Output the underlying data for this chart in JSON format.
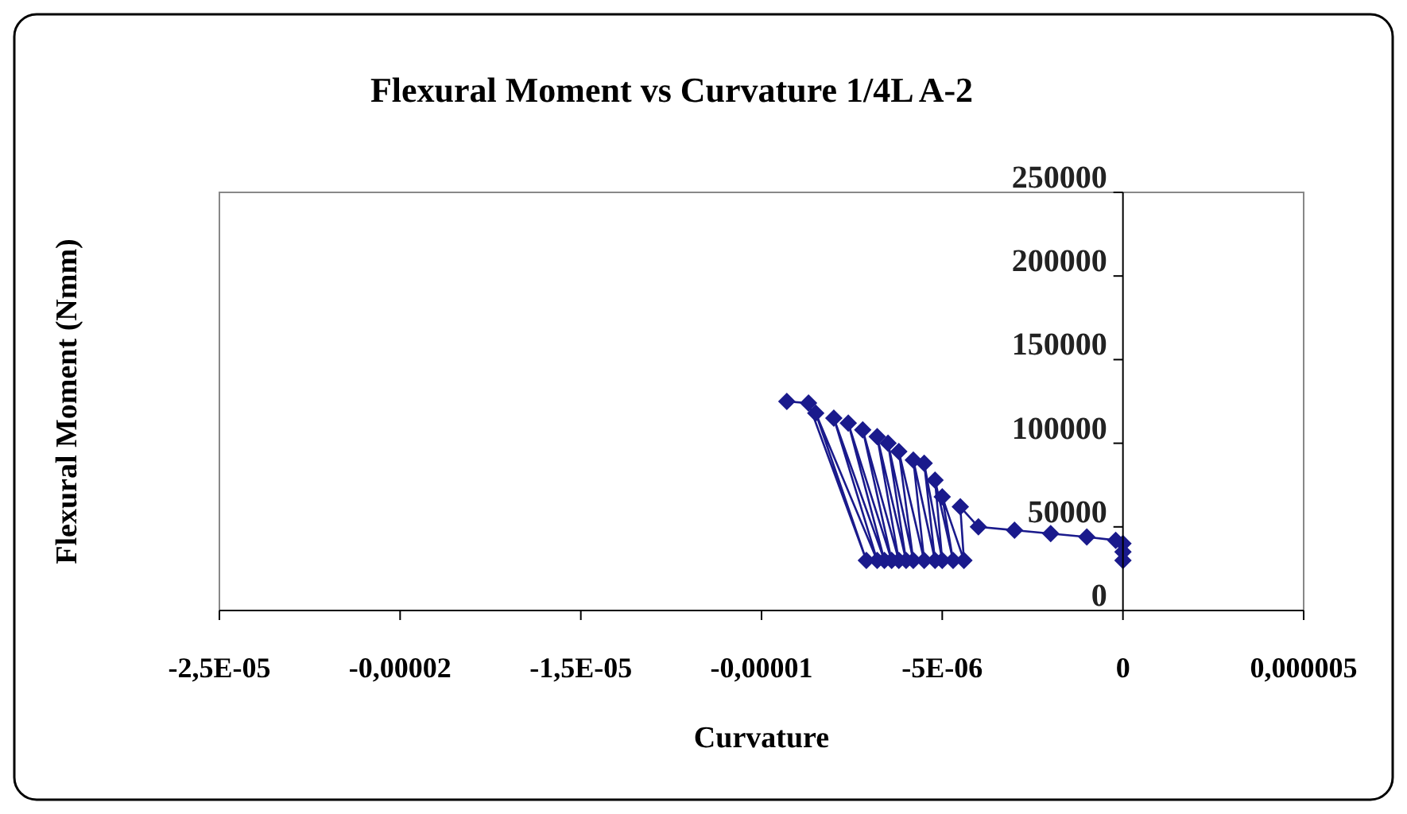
{
  "chart_data": {
    "type": "line",
    "title": "Flexural Moment vs Curvature 1/4L A-2",
    "xlabel": "Curvature",
    "ylabel": "Flexural Moment (Nmm)",
    "marker": "diamond",
    "line_style": "solid",
    "xlim": [
      -2.5e-05,
      5e-06
    ],
    "ylim": [
      0,
      250000
    ],
    "xticks": [
      {
        "value": -2.5e-05,
        "label": "-2,5E-05"
      },
      {
        "value": -2e-05,
        "label": "-0,00002"
      },
      {
        "value": -1.5e-05,
        "label": "-1,5E-05"
      },
      {
        "value": -1e-05,
        "label": "-0,00001"
      },
      {
        "value": -5e-06,
        "label": "-5E-06"
      },
      0,
      {
        "value": 5e-06,
        "label": "0,000005"
      }
    ],
    "yticks": [
      0,
      50000,
      100000,
      150000,
      200000,
      250000
    ],
    "series": [
      {
        "color": "#1a1a8c",
        "x": [
          0,
          0,
          0,
          -2e-07,
          -1e-06,
          -2e-06,
          -3e-06,
          -4e-06,
          -4.5e-06,
          -4.4e-06,
          -5e-06,
          -4.7e-06,
          -5.2e-06,
          -5e-06,
          -5.5e-06,
          -5.2e-06,
          -5.8e-06,
          -5.5e-06,
          -6.2e-06,
          -5.8e-06,
          -6.5e-06,
          -6e-06,
          -6.8e-06,
          -6.2e-06,
          -7.2e-06,
          -6.4e-06,
          -7.6e-06,
          -6.6e-06,
          -8e-06,
          -6.8e-06,
          -8.5e-06,
          -7.1e-06,
          -8.7e-06,
          -9.3e-06
        ],
        "values": [
          30000,
          35000,
          40000,
          42000,
          44000,
          46000,
          48000,
          50000,
          62000,
          30000,
          68000,
          30000,
          78000,
          30000,
          88000,
          30000,
          90000,
          30000,
          95000,
          30000,
          100000,
          30000,
          104000,
          30000,
          108000,
          30000,
          112000,
          30000,
          115000,
          30000,
          118000,
          30000,
          124000,
          125000
        ]
      }
    ]
  }
}
